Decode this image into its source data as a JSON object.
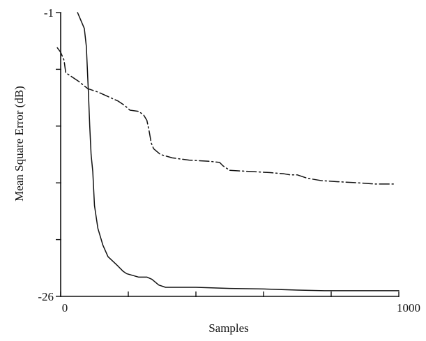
{
  "chart_data": {
    "type": "line",
    "title": "",
    "xlabel": "Samples",
    "ylabel": "Mean Square Error (dB)",
    "xlim": [
      0,
      1000
    ],
    "ylim": [
      -26,
      -1
    ],
    "x_tick_labels": [
      {
        "value": 0,
        "label": "0"
      },
      {
        "value": 1000,
        "label": "1000"
      }
    ],
    "x_tick_values": [
      0,
      200,
      400,
      600,
      800,
      1000
    ],
    "y_tick_labels": [
      {
        "value": -1,
        "label": "-1"
      },
      {
        "value": -26,
        "label": "-26"
      }
    ],
    "y_tick_values": [
      -1,
      -6,
      -11,
      -16,
      -21,
      -26
    ],
    "grid": false,
    "series": [
      {
        "style": "dash-dot",
        "points": [
          [
            -10,
            -4.1
          ],
          [
            0,
            -4.5
          ],
          [
            10,
            -5.2
          ],
          [
            15,
            -6.3
          ],
          [
            25,
            -6.5
          ],
          [
            35,
            -6.7
          ],
          [
            55,
            -7.1
          ],
          [
            80,
            -7.7
          ],
          [
            110,
            -8.0
          ],
          [
            140,
            -8.4
          ],
          [
            170,
            -8.8
          ],
          [
            190,
            -9.2
          ],
          [
            205,
            -9.6
          ],
          [
            230,
            -9.7
          ],
          [
            245,
            -10.0
          ],
          [
            255,
            -10.5
          ],
          [
            262,
            -11.5
          ],
          [
            268,
            -12.5
          ],
          [
            275,
            -13.0
          ],
          [
            295,
            -13.5
          ],
          [
            330,
            -13.8
          ],
          [
            380,
            -14.0
          ],
          [
            440,
            -14.1
          ],
          [
            470,
            -14.2
          ],
          [
            480,
            -14.5
          ],
          [
            500,
            -14.9
          ],
          [
            560,
            -15.0
          ],
          [
            620,
            -15.1
          ],
          [
            660,
            -15.2
          ],
          [
            680,
            -15.3
          ],
          [
            700,
            -15.3
          ],
          [
            730,
            -15.6
          ],
          [
            770,
            -15.8
          ],
          [
            820,
            -15.9
          ],
          [
            880,
            -16.0
          ],
          [
            930,
            -16.1
          ],
          [
            990,
            -16.1
          ]
        ]
      },
      {
        "style": "solid",
        "points": [
          [
            50,
            -1.0
          ],
          [
            60,
            -1.7
          ],
          [
            70,
            -2.4
          ],
          [
            76,
            -4.0
          ],
          [
            82,
            -8.0
          ],
          [
            86,
            -11.0
          ],
          [
            90,
            -13.5
          ],
          [
            95,
            -15.0
          ],
          [
            100,
            -18.0
          ],
          [
            110,
            -20.0
          ],
          [
            125,
            -21.5
          ],
          [
            140,
            -22.5
          ],
          [
            165,
            -23.2
          ],
          [
            185,
            -23.8
          ],
          [
            195,
            -24.0
          ],
          [
            230,
            -24.3
          ],
          [
            255,
            -24.3
          ],
          [
            270,
            -24.5
          ],
          [
            290,
            -25.0
          ],
          [
            310,
            -25.2
          ],
          [
            400,
            -25.2
          ],
          [
            500,
            -25.3
          ],
          [
            600,
            -25.35
          ],
          [
            700,
            -25.45
          ],
          [
            780,
            -25.5
          ],
          [
            850,
            -25.5
          ],
          [
            1000,
            -25.5
          ]
        ]
      }
    ]
  }
}
